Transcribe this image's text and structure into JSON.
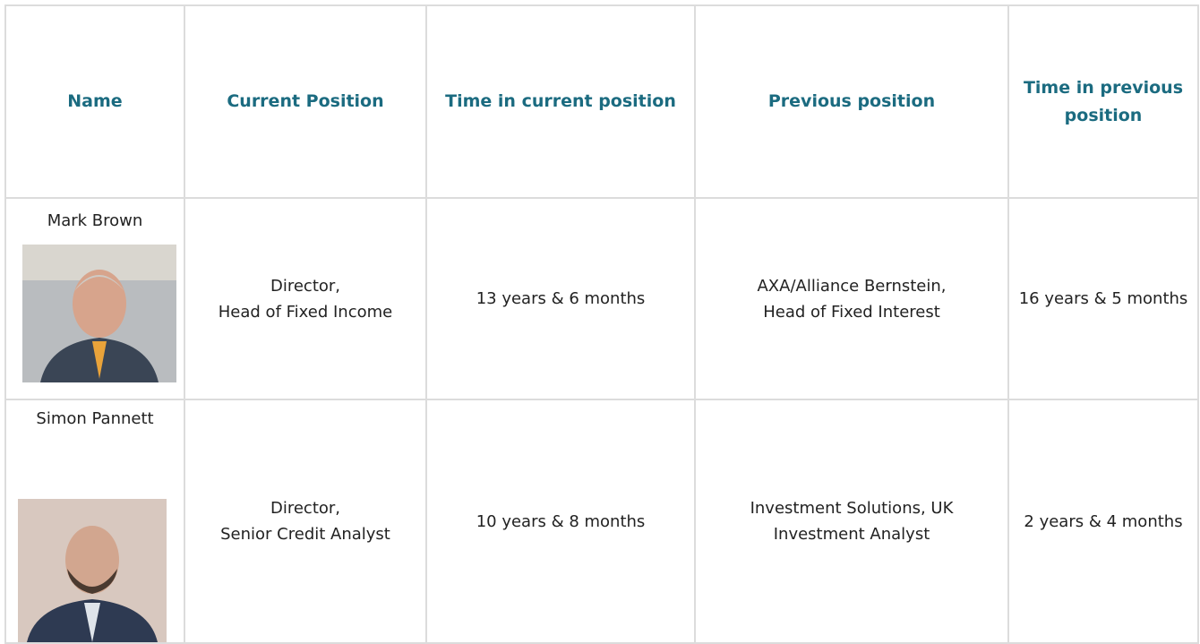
{
  "table": {
    "headers": [
      "Name",
      "Current Position",
      "Time in current position",
      "Previous position",
      "Time in previous position"
    ],
    "rows": [
      [
        [
          "Mark Brown"
        ],
        [
          "Director,",
          "Head of Fixed Income"
        ],
        [
          "13 years & 6 months"
        ],
        [
          "AXA/Alliance Bernstein,",
          "Head of Fixed Interest"
        ],
        [
          "16 years & 5 months"
        ]
      ],
      [
        [
          "Simon Pannett"
        ],
        [
          "Director,",
          "Senior Credit Analyst"
        ],
        [
          "10 years & 8 months"
        ],
        [
          "Investment Solutions, UK",
          "Investment Analyst"
        ],
        [
          "2 years & 4 months"
        ]
      ]
    ]
  }
}
